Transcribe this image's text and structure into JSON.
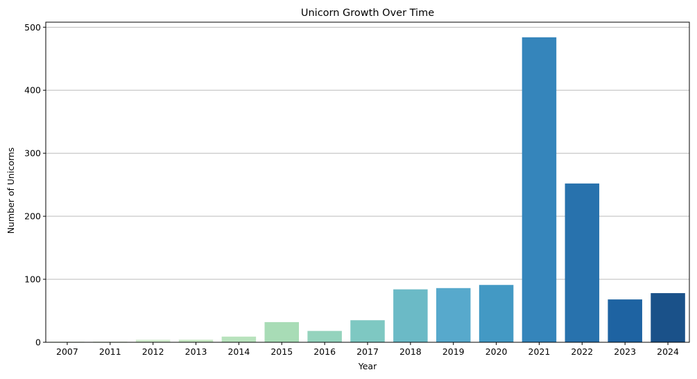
{
  "chart_data": {
    "type": "bar",
    "title": "Unicorn Growth Over Time",
    "xlabel": "Year",
    "ylabel": "Number of Unicorns",
    "categories": [
      "2007",
      "2011",
      "2012",
      "2013",
      "2014",
      "2015",
      "2016",
      "2017",
      "2018",
      "2019",
      "2020",
      "2021",
      "2022",
      "2023",
      "2024"
    ],
    "values": [
      1,
      1,
      4,
      4,
      9,
      32,
      18,
      35,
      84,
      86,
      91,
      484,
      252,
      68,
      78
    ],
    "ylim": [
      0,
      508
    ],
    "yticks": [
      0,
      100,
      200,
      300,
      400,
      500
    ],
    "grid": "y-axis major gridlines",
    "palette": "GnBu",
    "colors": [
      "#e6f5e0",
      "#dcf0d6",
      "#d2ecce",
      "#c6e8c3",
      "#b8e3bd",
      "#a8dcb6",
      "#94d3bd",
      "#7ec8c2",
      "#6bbac6",
      "#57a9cc",
      "#4399c4",
      "#3585bb",
      "#2872ad",
      "#1e63a2",
      "#1a5189"
    ]
  }
}
